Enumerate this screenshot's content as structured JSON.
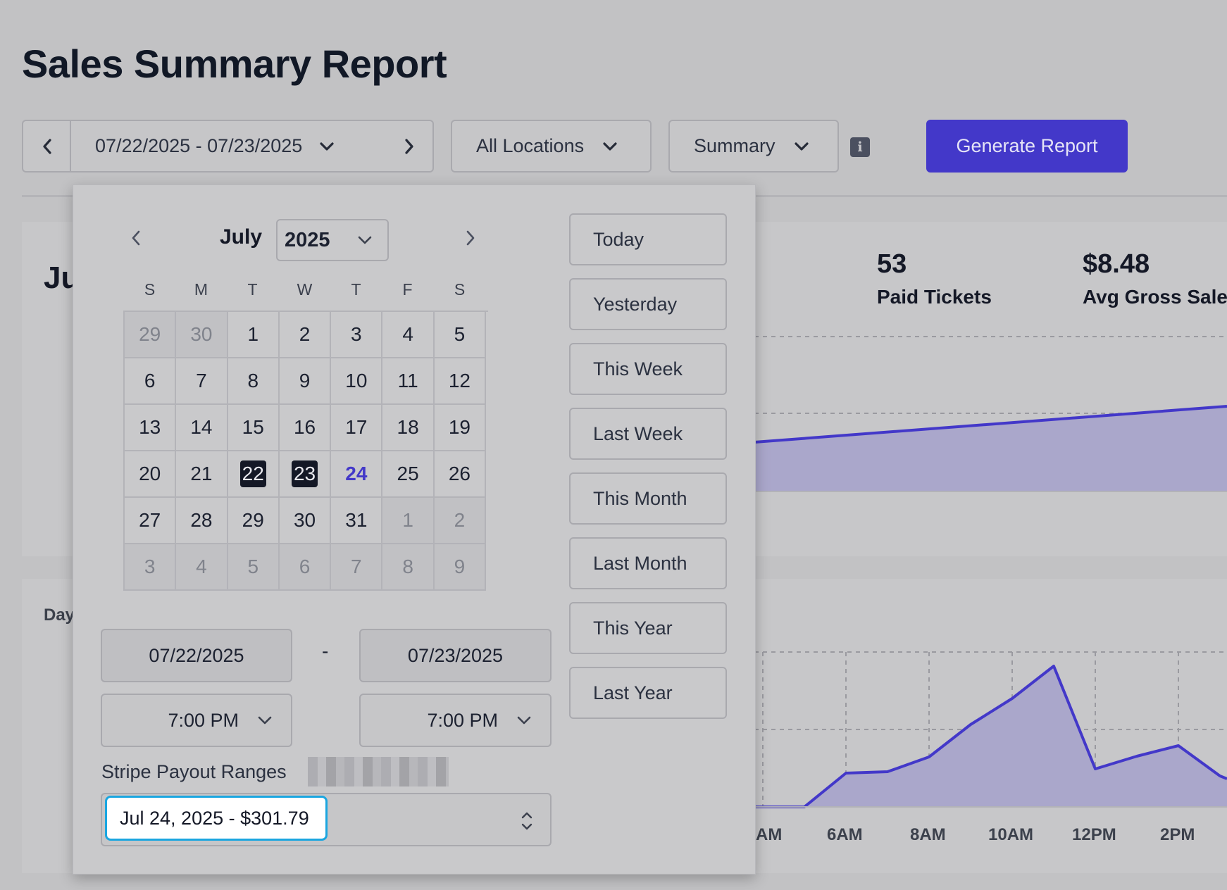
{
  "page_title": "Sales Summary Report",
  "toolbar": {
    "date_range": "07/22/2025 - 07/23/2025",
    "location": "All Locations",
    "report_type": "Summary",
    "info_glyph": "i",
    "generate_label": "Generate Report"
  },
  "stats": [
    {
      "value": "53",
      "label": "Paid Tickets"
    },
    {
      "value": "$8.48",
      "label": "Avg Gross Sale"
    }
  ],
  "background": {
    "card1_title_partial": "Ju",
    "card2_label_partial": "Day"
  },
  "hourly_chart": {
    "x_ticks": [
      "AM",
      "6AM",
      "8AM",
      "10AM",
      "12PM",
      "2PM"
    ]
  },
  "calendar": {
    "month": "July",
    "year": "2025",
    "weekdays": [
      "S",
      "M",
      "T",
      "W",
      "T",
      "F",
      "S"
    ],
    "weeks": [
      [
        "29",
        "30",
        "1",
        "2",
        "3",
        "4",
        "5"
      ],
      [
        "6",
        "7",
        "8",
        "9",
        "10",
        "11",
        "12"
      ],
      [
        "13",
        "14",
        "15",
        "16",
        "17",
        "18",
        "19"
      ],
      [
        "20",
        "21",
        "22",
        "23",
        "24",
        "25",
        "26"
      ],
      [
        "27",
        "28",
        "29",
        "30",
        "31",
        "1",
        "2"
      ],
      [
        "3",
        "4",
        "5",
        "6",
        "7",
        "8",
        "9"
      ]
    ],
    "selected_days": [
      "22",
      "23"
    ],
    "today_day": "24"
  },
  "presets": [
    "Today",
    "Yesterday",
    "This Week",
    "Last Week",
    "This Month",
    "Last Month",
    "This Year",
    "Last Year"
  ],
  "range_inputs": {
    "start_date": "07/22/2025",
    "separator": "-",
    "end_date": "07/23/2025",
    "start_time": "7:00 PM",
    "end_time": "7:00 PM"
  },
  "payout": {
    "label": "Stripe Payout Ranges",
    "selected": "Jul 24, 2025 - $301.79"
  },
  "colors": {
    "accent": "#4338c9",
    "selected_day": "#141826",
    "focus_ring": "#1aa6e0"
  }
}
